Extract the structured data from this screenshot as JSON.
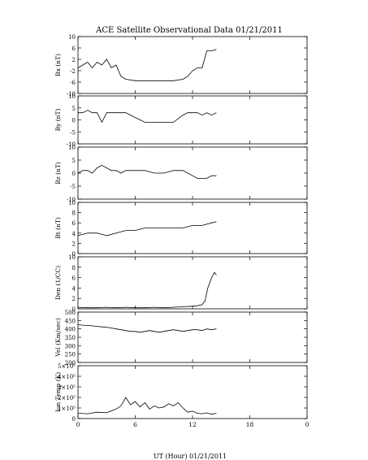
{
  "title": "ACE Satellite Observational Data   01/21/2011",
  "xlabel": "UT (Hour)   01/21/2011",
  "x_ticks": [
    "0",
    "6",
    "12",
    "18",
    "0"
  ],
  "colors": {
    "line": "#000000",
    "background": "#ffffff"
  },
  "chart_data": [
    {
      "type": "line",
      "ylabel": "Bx (nT)",
      "ylim": [
        -10,
        10
      ],
      "y_ticks": [
        "10",
        "6",
        "2",
        "-2",
        "-6",
        "-10"
      ],
      "x": [
        0,
        0.5,
        1,
        1.5,
        2,
        2.5,
        3,
        3.5,
        4,
        4.5,
        5,
        6,
        7,
        8,
        9,
        10,
        11,
        11.5,
        12,
        12.5,
        13,
        13.5,
        14,
        14.5
      ],
      "values": [
        -1,
        0,
        1,
        -1,
        1,
        0,
        2,
        -1,
        0,
        -4,
        -5,
        -5.5,
        -5.5,
        -5.5,
        -5.5,
        -5.5,
        -5,
        -4,
        -2,
        -1,
        -1,
        5,
        5,
        5.5
      ]
    },
    {
      "type": "line",
      "ylabel": "By (nT)",
      "ylim": [
        -10,
        10
      ],
      "y_ticks": [
        "10",
        "5",
        "0",
        "-5",
        "-10"
      ],
      "x": [
        0,
        0.5,
        1,
        1.5,
        2,
        2.5,
        3,
        3.5,
        4,
        4.5,
        5,
        6,
        7,
        8,
        9,
        10,
        11,
        11.5,
        12,
        12.5,
        13,
        13.5,
        14,
        14.5
      ],
      "values": [
        3,
        3,
        4,
        3,
        3,
        -1,
        3,
        3,
        3,
        3,
        3,
        1,
        -1,
        -1,
        -1,
        -1,
        2,
        3,
        3,
        3,
        2,
        3,
        2,
        3
      ]
    },
    {
      "type": "line",
      "ylabel": "Bz (nT)",
      "ylim": [
        -10,
        10
      ],
      "y_ticks": [
        "10",
        "5",
        "0",
        "-5",
        "-10"
      ],
      "x": [
        0,
        0.5,
        1,
        1.5,
        2,
        2.5,
        3,
        3.5,
        4,
        4.5,
        5,
        6,
        7,
        8,
        9,
        10,
        11,
        11.5,
        12,
        12.5,
        13,
        13.5,
        14,
        14.5
      ],
      "values": [
        0,
        1,
        1,
        0,
        2,
        3,
        2,
        1,
        1,
        0,
        1,
        1,
        1,
        0,
        0,
        1,
        1,
        0,
        -1,
        -2,
        -2,
        -2,
        -1,
        -1
      ]
    },
    {
      "type": "line",
      "ylabel": "Bt (nT)",
      "ylim": [
        0,
        10
      ],
      "y_ticks": [
        "10",
        "8",
        "6",
        "4",
        "2",
        "0"
      ],
      "x": [
        0,
        1,
        2,
        3,
        4,
        5,
        6,
        7,
        8,
        9,
        10,
        11,
        12,
        13,
        14,
        14.5
      ],
      "values": [
        3.5,
        4,
        4,
        3.5,
        4,
        4.5,
        4.5,
        5,
        5,
        5,
        5,
        5,
        5.5,
        5.5,
        6,
        6.2
      ]
    },
    {
      "type": "line",
      "ylabel": "Den (1/CC)",
      "ylim": [
        0,
        10
      ],
      "y_ticks": [
        "10",
        "8",
        "6",
        "4",
        "2",
        "0"
      ],
      "x": [
        0,
        1,
        2,
        3,
        4,
        5,
        6,
        7,
        8,
        9,
        10,
        11,
        12,
        12.5,
        13,
        13.3,
        13.6,
        14,
        14.3,
        14.5
      ],
      "values": [
        0.3,
        0.2,
        0.2,
        0.3,
        0.2,
        0.3,
        0.2,
        0.2,
        0.3,
        0.2,
        0.3,
        0.4,
        0.5,
        0.6,
        0.8,
        1.5,
        4,
        6,
        7,
        6.5
      ]
    },
    {
      "type": "line",
      "ylabel": "Vel (Km/sec)",
      "ylim": [
        200,
        500
      ],
      "y_ticks": [
        "500",
        "450",
        "400",
        "350",
        "300",
        "250",
        "200"
      ],
      "x": [
        0,
        0.5,
        1,
        1.5,
        2,
        2.5,
        3,
        3.5,
        4,
        4.5,
        5,
        5.5,
        6,
        6.5,
        7,
        7.5,
        8,
        8.5,
        9,
        9.5,
        10,
        10.5,
        11,
        11.5,
        12,
        12.5,
        13,
        13.5,
        14,
        14.5
      ],
      "values": [
        425,
        422,
        420,
        418,
        415,
        412,
        410,
        405,
        400,
        395,
        390,
        385,
        385,
        380,
        385,
        390,
        385,
        380,
        385,
        390,
        395,
        390,
        385,
        390,
        395,
        395,
        390,
        400,
        395,
        400
      ]
    },
    {
      "type": "line",
      "ylabel": "Ion Temp (K)",
      "ylim": [
        0,
        500000
      ],
      "y_ticks": [
        "5×10⁵",
        "4×10⁵",
        "3×10⁵",
        "2×10⁵",
        "1×10⁵",
        "0"
      ],
      "x": [
        0,
        1,
        2,
        3,
        4,
        4.5,
        5,
        5.5,
        6,
        6.5,
        7,
        7.5,
        8,
        8.5,
        9,
        9.5,
        10,
        10.5,
        11,
        11.5,
        12,
        12.5,
        13,
        13.5,
        14,
        14.5
      ],
      "values": [
        50000,
        45000,
        60000,
        55000,
        90000,
        120000,
        200000,
        130000,
        160000,
        110000,
        150000,
        90000,
        120000,
        100000,
        110000,
        140000,
        120000,
        150000,
        100000,
        60000,
        70000,
        50000,
        45000,
        55000,
        40000,
        50000
      ]
    }
  ]
}
